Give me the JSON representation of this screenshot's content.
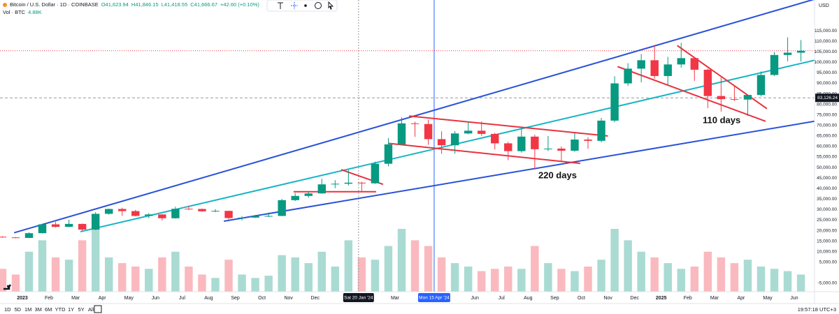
{
  "header": {
    "symbol": "Bitcoin / U.S. Dollar · 1D · COINBASE",
    "open": "O41,623.94",
    "high": "H41,846.15",
    "low": "L41,418.55",
    "close": "C41,666.67",
    "change": "+42.60 (+0.10%)",
    "volume_label": "Vol · BTC",
    "volume_value": "4.88K",
    "currency": "USD"
  },
  "toolbar": {
    "ranges": [
      "1D",
      "5D",
      "1M",
      "3M",
      "6M",
      "YTD",
      "1Y",
      "5Y",
      "All"
    ],
    "clock": "19:57:18 UTC+3"
  },
  "chart_data": {
    "type": "candlestick",
    "x": [
      0.25,
      0.75,
      1.25,
      1.75,
      2.25,
      2.75,
      3.25,
      3.75,
      4.25,
      4.75,
      5.25,
      5.75,
      6.25,
      6.75,
      7.25,
      7.75,
      8.25,
      8.75,
      9.25,
      9.75,
      10.25,
      10.75,
      11.25,
      11.75,
      12.25,
      12.75,
      13.25,
      13.75,
      14.25,
      14.75,
      15.25,
      15.75,
      16.25,
      16.75,
      17.25,
      17.75,
      18.25,
      18.75,
      19.25,
      19.75,
      20.25,
      20.75,
      21.25,
      21.75,
      22.25,
      22.75,
      23.25,
      23.75,
      24.25,
      24.75,
      25.25,
      25.75,
      26.25,
      26.75,
      27.25,
      27.75,
      28.25,
      28.75,
      29.25,
      29.75,
      30.25
    ],
    "open": [
      17100,
      16800,
      16550,
      18800,
      23000,
      21800,
      23200,
      20500,
      28000,
      30300,
      29300,
      27000,
      27700,
      25900,
      30400,
      30300,
      29200,
      29400,
      26000,
      26200,
      26900,
      27000,
      34500,
      36500,
      37700,
      42000,
      42300,
      42800,
      42500,
      51800,
      61000,
      71000,
      70700,
      63500,
      60600,
      66200,
      67500,
      66000,
      61500,
      57800,
      64700,
      58700,
      59000,
      58000,
      63300,
      62700,
      72300,
      90000,
      97000,
      101000,
      93500,
      99000,
      102000,
      96500,
      84000,
      82500,
      82300,
      84500,
      94000,
      103500,
      104600
    ],
    "high": [
      17400,
      17000,
      19200,
      23300,
      24200,
      25200,
      23400,
      28800,
      30500,
      30900,
      29900,
      28400,
      27800,
      31400,
      31800,
      30500,
      30200,
      29500,
      26800,
      27500,
      28600,
      35100,
      37900,
      38400,
      44700,
      44000,
      48900,
      43200,
      52800,
      64000,
      73800,
      71800,
      72700,
      67200,
      67300,
      71900,
      71900,
      66500,
      62200,
      68400,
      65600,
      65000,
      60000,
      66400,
      64400,
      73600,
      93400,
      99600,
      104000,
      108300,
      102600,
      109300,
      102500,
      97000,
      92800,
      88700,
      84600,
      95700,
      104900,
      111900,
      110600
    ],
    "low": [
      16700,
      16400,
      16500,
      18700,
      21500,
      21600,
      19600,
      20300,
      27600,
      27100,
      26800,
      25900,
      24800,
      25700,
      29900,
      29000,
      28800,
      25400,
      24900,
      26000,
      26500,
      26900,
      34100,
      35600,
      37500,
      40200,
      41500,
      38600,
      42200,
      50600,
      60800,
      64600,
      60800,
      56500,
      56600,
      65800,
      65100,
      58600,
      53500,
      57100,
      49100,
      57800,
      52600,
      57500,
      58900,
      62000,
      71500,
      88800,
      90500,
      92200,
      89300,
      97500,
      91200,
      78200,
      76600,
      81600,
      74500,
      83800,
      93500,
      100500,
      100400
    ],
    "close": [
      16800,
      16550,
      18800,
      23000,
      21800,
      23200,
      20500,
      28000,
      30300,
      29300,
      27000,
      27700,
      25900,
      30400,
      30300,
      29200,
      29400,
      26000,
      26200,
      26900,
      27000,
      34500,
      36500,
      37700,
      42000,
      42300,
      42800,
      42500,
      51800,
      61000,
      71000,
      70700,
      63500,
      60600,
      66200,
      67500,
      66000,
      61500,
      57800,
      64700,
      58700,
      59000,
      58000,
      63300,
      62700,
      72300,
      90000,
      97000,
      101000,
      93500,
      99000,
      102000,
      96500,
      84000,
      82500,
      82300,
      84500,
      94000,
      103500,
      104600,
      105500
    ],
    "volume": [
      20000,
      15000,
      35000,
      45000,
      30000,
      28000,
      45000,
      55000,
      30000,
      25000,
      22000,
      20000,
      30000,
      35000,
      22000,
      15000,
      12000,
      28000,
      15000,
      12000,
      14000,
      32000,
      30000,
      25000,
      35000,
      22000,
      45000,
      30000,
      28000,
      40000,
      55000,
      45000,
      40000,
      30000,
      25000,
      22000,
      18000,
      20000,
      22000,
      20000,
      40000,
      25000,
      20000,
      18000,
      22000,
      28000,
      55000,
      45000,
      35000,
      30000,
      25000,
      20000,
      22000,
      35000,
      30000,
      25000,
      28000,
      22000,
      20000,
      18000,
      15000
    ],
    "up_color": "#089981",
    "down_color": "#f23645",
    "xlim": [
      0.16,
      30.76
    ],
    "xticks": [
      {
        "value": 1,
        "label": "2023"
      },
      {
        "value": 2,
        "label": "Feb"
      },
      {
        "value": 3,
        "label": "Mar"
      },
      {
        "value": 4,
        "label": "Apr"
      },
      {
        "value": 5,
        "label": "May"
      },
      {
        "value": 6,
        "label": "Jun"
      },
      {
        "value": 7,
        "label": "Jul"
      },
      {
        "value": 8,
        "label": "Aug"
      },
      {
        "value": 9,
        "label": "Sep"
      },
      {
        "value": 10,
        "label": "Oct"
      },
      {
        "value": 11,
        "label": "Nov"
      },
      {
        "value": 12,
        "label": "Dec"
      },
      {
        "value": 15,
        "label": "Mar"
      },
      {
        "value": 18,
        "label": "Jun"
      },
      {
        "value": 19,
        "label": "Jul"
      },
      {
        "value": 20,
        "label": "Aug"
      },
      {
        "value": 21,
        "label": "Sep"
      },
      {
        "value": 22,
        "label": "Oct"
      },
      {
        "value": 23,
        "label": "Nov"
      },
      {
        "value": 24,
        "label": "Dec"
      },
      {
        "value": 25,
        "label": "2025"
      },
      {
        "value": 26,
        "label": "Feb"
      },
      {
        "value": 27,
        "label": "Mar"
      },
      {
        "value": 28,
        "label": "Apr"
      },
      {
        "value": 29,
        "label": "May"
      },
      {
        "value": 30,
        "label": "Jun"
      }
    ],
    "ylim": [
      -9000,
      123000
    ],
    "yticks": [
      {
        "value": 115000,
        "label": "115,000.00"
      },
      {
        "value": 110000,
        "label": "110,000.00"
      },
      {
        "value": 105000,
        "label": "105,000.00"
      },
      {
        "value": 100000,
        "label": "100,000.00"
      },
      {
        "value": 95000,
        "label": "95,000.00"
      },
      {
        "value": 90000,
        "label": "90,000.00"
      },
      {
        "value": 85000,
        "label": "85,000.00"
      },
      {
        "value": 80000,
        "label": "80,000.00"
      },
      {
        "value": 75000,
        "label": "75,000.00"
      },
      {
        "value": 70000,
        "label": "70,000.00"
      },
      {
        "value": 65000,
        "label": "65,000.00"
      },
      {
        "value": 60000,
        "label": "60,000.00"
      },
      {
        "value": 55000,
        "label": "55,000.00"
      },
      {
        "value": 50000,
        "label": "50,000.00"
      },
      {
        "value": 45000,
        "label": "45,000.00"
      },
      {
        "value": 40000,
        "label": "40,000.00"
      },
      {
        "value": 35000,
        "label": "35,000.00"
      },
      {
        "value": 30000,
        "label": "30,000.00"
      },
      {
        "value": 25000,
        "label": "25,000.00"
      },
      {
        "value": 20000,
        "label": "20,000.00"
      },
      {
        "value": 15000,
        "label": "15,000.00"
      },
      {
        "value": 10000,
        "label": "10,000.00"
      },
      {
        "value": 5000,
        "label": "5,000.00"
      },
      {
        "value": -5000,
        "label": "-5,000.00"
      }
    ],
    "grid": false,
    "trend_lines": [
      {
        "color": "#2a52d8",
        "points": [
          [
            0.69,
            19000
          ],
          [
            30.76,
            130000
          ]
        ]
      },
      {
        "color": "#2a52d8",
        "points": [
          [
            8.57,
            24500
          ],
          [
            30.76,
            72000
          ]
        ]
      },
      {
        "color": "#17b5c4",
        "points": [
          [
            3.18,
            19500
          ],
          [
            30.76,
            101000
          ]
        ]
      },
      {
        "color": "#e8323f",
        "points": [
          [
            11.19,
            38500
          ],
          [
            14.29,
            38500
          ]
        ]
      },
      {
        "color": "#e8323f",
        "points": [
          [
            12.98,
            49000
          ],
          [
            14.55,
            42000
          ]
        ]
      },
      {
        "color": "#e8323f",
        "points": [
          [
            15.53,
            74500
          ],
          [
            23.0,
            65000
          ]
        ]
      },
      {
        "color": "#e8323f",
        "points": [
          [
            14.74,
            61500
          ],
          [
            21.96,
            52000
          ]
        ]
      },
      {
        "color": "#e8323f",
        "points": [
          [
            25.6,
            108000
          ],
          [
            28.97,
            78000
          ]
        ]
      },
      {
        "color": "#e8323f",
        "points": [
          [
            23.36,
            98000
          ],
          [
            28.92,
            72000
          ]
        ]
      }
    ],
    "annotations": [
      "220 days",
      "110 days"
    ],
    "crosshair": {
      "x": 16.47,
      "x_label": "Mon 15 Apr '24",
      "price": 83126.24,
      "price_label": "83,126.24"
    },
    "marker": {
      "x": 13.63,
      "label": "Sat 20 Jan '24"
    }
  }
}
